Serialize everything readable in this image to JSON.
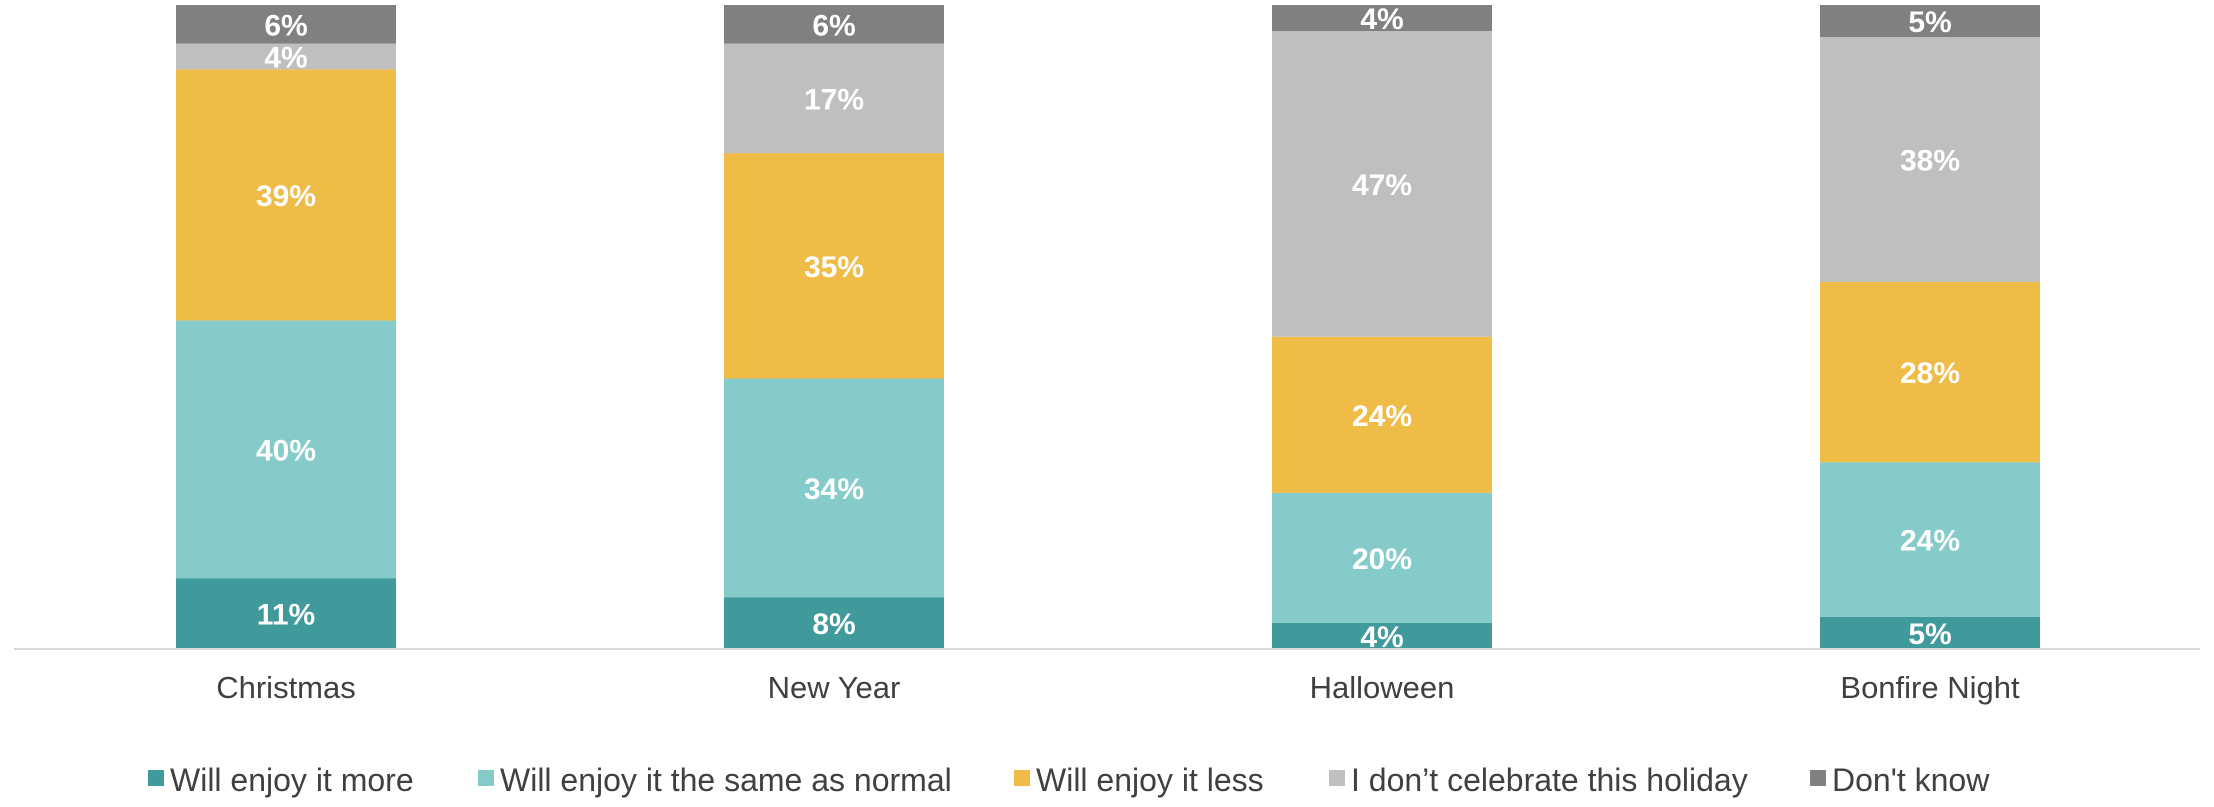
{
  "chart_data": {
    "type": "bar",
    "stacked": true,
    "categories": [
      "Christmas",
      "New Year",
      "Halloween",
      "Bonfire Night"
    ],
    "series": [
      {
        "name": "Will enjoy it more",
        "color": "#40999A",
        "values": [
          11,
          8,
          4,
          5
        ]
      },
      {
        "name": "Will enjoy it the same as normal",
        "color": "#84CBCA",
        "values": [
          40,
          34,
          20,
          24
        ]
      },
      {
        "name": "Will enjoy it less",
        "color": "#F0BC48",
        "values": [
          39,
          35,
          24,
          28
        ]
      },
      {
        "name": "I don’t celebrate this holiday",
        "color": "#BFBFBF",
        "values": [
          4,
          17,
          47,
          38
        ]
      },
      {
        "name": "Don't know",
        "color": "#808080",
        "values": [
          6,
          6,
          4,
          5
        ]
      }
    ],
    "value_suffix": "%",
    "ylim": [
      0,
      100
    ],
    "grid": false,
    "legend_position": "bottom",
    "title": "",
    "xlabel": "",
    "ylabel": ""
  }
}
